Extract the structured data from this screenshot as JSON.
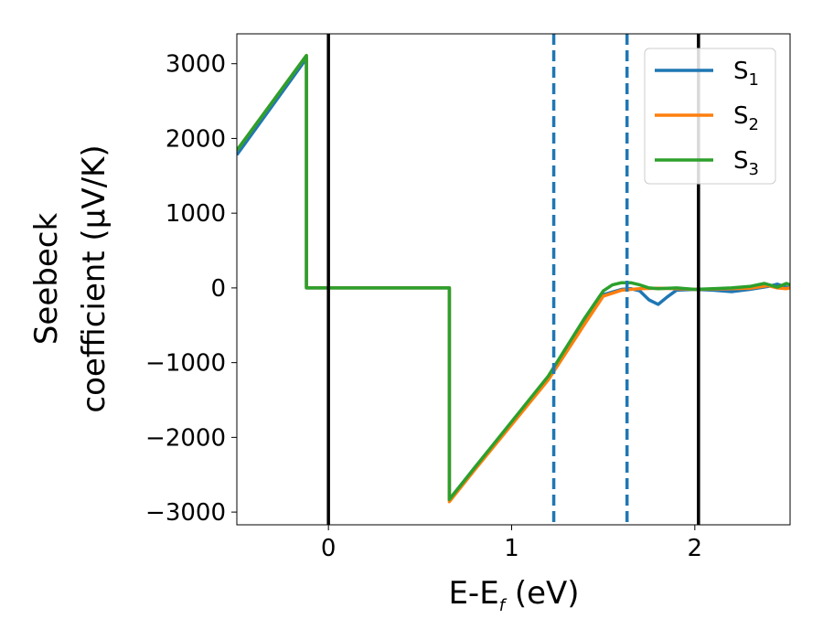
{
  "chart_data": {
    "type": "line",
    "xlabel_main": "E-E",
    "xlabel_sub": "f",
    "xlabel_tail": " (eV)",
    "ylabel_line1": "Seebeck",
    "ylabel_line2": "coefficient  (μV/K)",
    "xlim": [
      -0.5,
      2.52
    ],
    "ylim": [
      -3170,
      3400
    ],
    "xticks": [
      0,
      1,
      2
    ],
    "xtick_labels": [
      "0",
      "1",
      "2"
    ],
    "yticks": [
      -3000,
      -2000,
      -1000,
      0,
      1000,
      2000,
      3000
    ],
    "ytick_labels": [
      "−3000",
      "−2000",
      "−1000",
      "0",
      "1000",
      "2000",
      "3000"
    ],
    "grid": false,
    "legend_position": "top-right",
    "vlines": [
      {
        "x": 0.0,
        "style": "solid",
        "color": "#000000"
      },
      {
        "x": 2.02,
        "style": "solid",
        "color": "#000000"
      },
      {
        "x": 1.23,
        "style": "dashed",
        "color": "#1f77b4"
      },
      {
        "x": 1.63,
        "style": "dashed",
        "color": "#1f77b4"
      }
    ],
    "series": [
      {
        "name_main": "S",
        "name_sub": "1",
        "color": "#1f77b4",
        "x": [
          -0.5,
          -0.12,
          -0.12,
          0.66,
          0.66,
          0.8,
          1.0,
          1.2,
          1.4,
          1.5,
          1.6,
          1.65,
          1.7,
          1.75,
          1.8,
          1.85,
          1.9,
          2.0,
          2.1,
          2.2,
          2.3,
          2.4,
          2.45,
          2.5,
          2.52
        ],
        "y": [
          1780,
          3070,
          0,
          0,
          -2830,
          -2400,
          -1800,
          -1200,
          -450,
          -90,
          -20,
          -10,
          -40,
          -160,
          -220,
          -120,
          -30,
          -20,
          -30,
          -50,
          -20,
          20,
          50,
          10,
          0
        ]
      },
      {
        "name_main": "S",
        "name_sub": "2",
        "color": "#ff7f0e",
        "x": [
          -0.5,
          -0.12,
          -0.12,
          0.66,
          0.66,
          0.8,
          1.0,
          1.2,
          1.4,
          1.5,
          1.6,
          1.7,
          1.8,
          1.9,
          2.0,
          2.1,
          2.2,
          2.3,
          2.4,
          2.45,
          2.5,
          2.52
        ],
        "y": [
          1840,
          3110,
          0,
          0,
          -2860,
          -2430,
          -1830,
          -1230,
          -480,
          -110,
          -30,
          -10,
          -5,
          -10,
          -20,
          -15,
          -10,
          -5,
          30,
          0,
          -10,
          0
        ]
      },
      {
        "name_main": "S",
        "name_sub": "3",
        "color": "#2ca02c",
        "x": [
          -0.5,
          -0.12,
          -0.12,
          0.66,
          0.66,
          0.8,
          1.0,
          1.2,
          1.4,
          1.5,
          1.55,
          1.6,
          1.65,
          1.7,
          1.75,
          1.8,
          1.9,
          2.0,
          2.1,
          2.2,
          2.3,
          2.38,
          2.45,
          2.5,
          2.52
        ],
        "y": [
          1840,
          3110,
          0,
          0,
          -2830,
          -2400,
          -1790,
          -1180,
          -400,
          -40,
          40,
          70,
          70,
          40,
          0,
          -10,
          0,
          -20,
          -10,
          0,
          20,
          60,
          10,
          60,
          40
        ]
      }
    ]
  }
}
